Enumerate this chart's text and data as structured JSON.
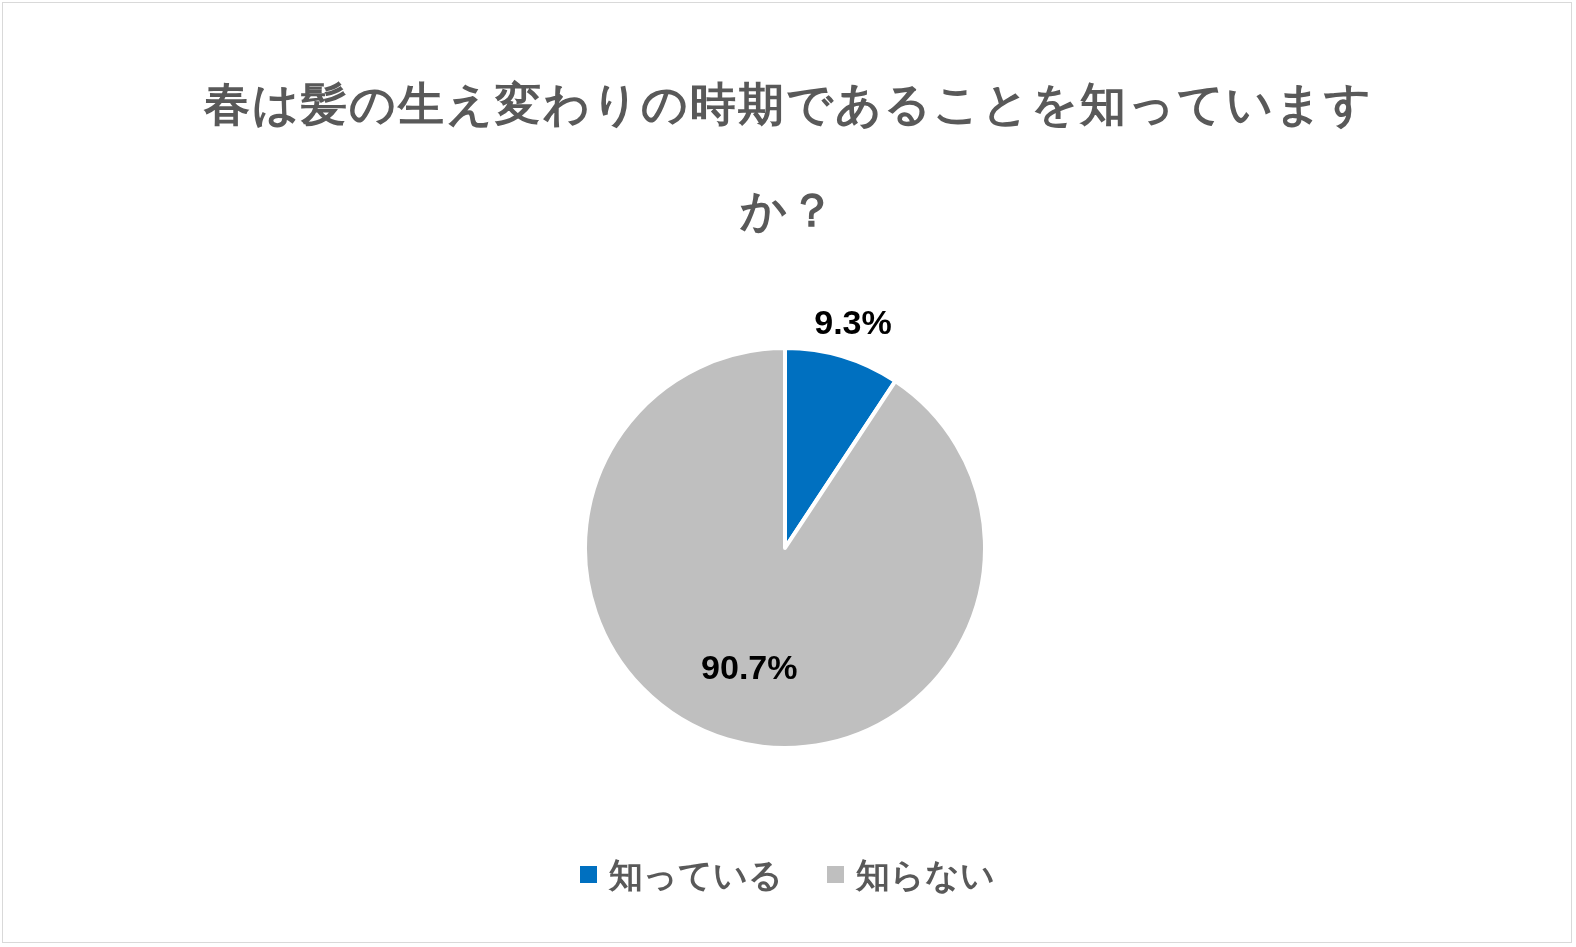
{
  "chart_data": {
    "type": "pie",
    "title": "春は髪の生え変わりの時期であることを知っていますか？",
    "categories": [
      "知っている",
      "知らない"
    ],
    "values": [
      9.3,
      90.7
    ],
    "colors": [
      "#0070c0",
      "#bfbfbf"
    ],
    "value_labels": [
      "9.3%",
      "90.7%"
    ],
    "legend": "bottom"
  }
}
